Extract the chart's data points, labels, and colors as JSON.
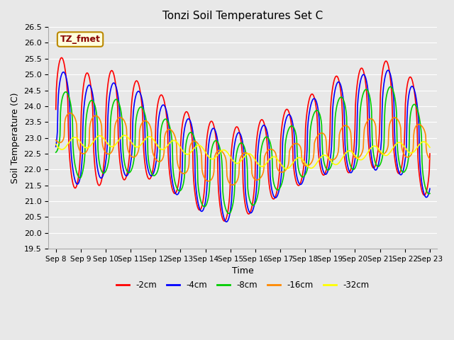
{
  "title": "Tonzi Soil Temperatures Set C",
  "xlabel": "Time",
  "ylabel": "Soil Temperature (C)",
  "ylim": [
    19.5,
    26.5
  ],
  "background_color": "#e8e8e8",
  "plot_bg_color": "#e8e8e8",
  "grid_color": "#ffffff",
  "legend_label": "TZ_fmet",
  "legend_bg": "#ffffdd",
  "legend_border": "#bb8800",
  "series_colors": {
    "-2cm": "#ff0000",
    "-4cm": "#0000ff",
    "-8cm": "#00cc00",
    "-16cm": "#ff8800",
    "-32cm": "#ffff00"
  },
  "depths": [
    "-2cm",
    "-4cm",
    "-8cm",
    "-16cm",
    "-32cm"
  ],
  "tick_dates": [
    "Sep 8",
    "Sep 9",
    "Sep 10",
    "Sep 11",
    "Sep 12",
    "Sep 13",
    "Sep 14",
    "Sep 15",
    "Sep 16",
    "Sep 17",
    "Sep 18",
    "Sep 19",
    "Sep 20",
    "Sep 21",
    "Sep 22",
    "Sep 23"
  ],
  "yticks": [
    19.5,
    20.0,
    20.5,
    21.0,
    21.5,
    22.0,
    22.5,
    23.0,
    23.5,
    24.0,
    24.5,
    25.0,
    25.5,
    26.0,
    26.5
  ]
}
